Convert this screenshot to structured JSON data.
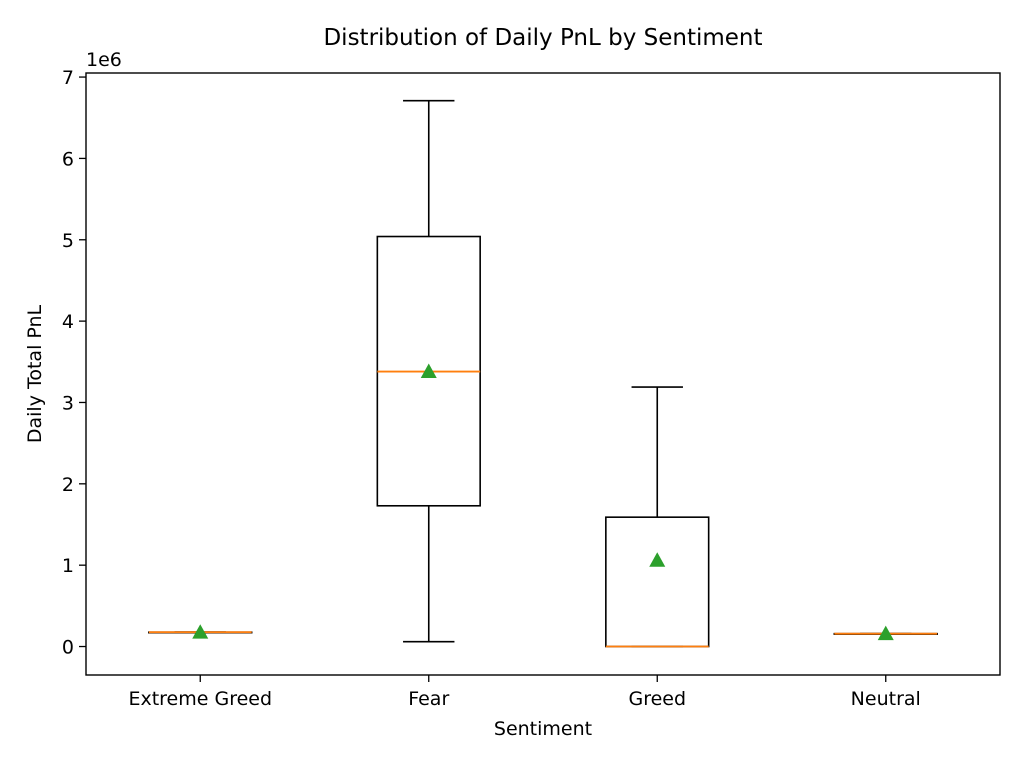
{
  "chart_data": {
    "type": "box",
    "title": "Distribution of Daily PnL by Sentiment",
    "xlabel": "Sentiment",
    "ylabel": "Daily Total PnL",
    "y_offset_label": "1e6",
    "ylim": [
      -0.35,
      7.05
    ],
    "y_ticks": [
      0,
      1,
      2,
      3,
      4,
      5,
      6,
      7
    ],
    "categories": [
      "Extreme Greed",
      "Fear",
      "Greed",
      "Neutral"
    ],
    "boxes": [
      {
        "category": "Extreme Greed",
        "whisker_low": 0.176,
        "q1": 0.176,
        "median": 0.176,
        "q3": 0.176,
        "whisker_high": 0.176,
        "mean": 0.176
      },
      {
        "category": "Fear",
        "whisker_low": 0.06,
        "q1": 1.73,
        "median": 3.38,
        "q3": 5.04,
        "whisker_high": 6.71,
        "mean": 3.38
      },
      {
        "category": "Greed",
        "whisker_low": 0.0,
        "q1": 0.0,
        "median": 0.0,
        "q3": 1.59,
        "whisker_high": 3.19,
        "mean": 1.06
      },
      {
        "category": "Neutral",
        "whisker_low": 0.158,
        "q1": 0.158,
        "median": 0.158,
        "q3": 0.158,
        "whisker_high": 0.158,
        "mean": 0.158
      }
    ],
    "colors": {
      "box": "#000000",
      "median": "#ff7f0e",
      "mean": "#2ca02c"
    },
    "legend": "none",
    "grid": false
  }
}
